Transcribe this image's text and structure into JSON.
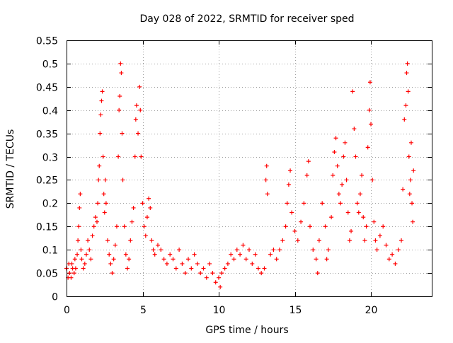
{
  "chart_data": {
    "type": "scatter",
    "title": "Day 028 of 2022, SRMTID for receiver sped",
    "xlabel": "GPS time / hours",
    "ylabel": "SRMTID / TECUs",
    "xlim": [
      0,
      24
    ],
    "ylim": [
      0,
      0.55
    ],
    "xticks": [
      0,
      5,
      10,
      15,
      20
    ],
    "yticks": [
      0,
      0.05,
      0.1,
      0.15,
      0.2,
      0.25,
      0.3,
      0.35,
      0.4,
      0.45,
      0.5,
      0.55
    ],
    "xtick_labels": [
      "0",
      "5",
      "10",
      "15",
      "20"
    ],
    "ytick_labels": [
      "0",
      "0.05",
      "0.1",
      "0.15",
      "0.2",
      "0.25",
      "0.3",
      "0.35",
      "0.4",
      "0.45",
      "0.5",
      "0.55"
    ],
    "grid": true,
    "marker": "+",
    "color": "#ff0000",
    "series": [
      {
        "name": "SRMTID",
        "points": [
          [
            0.0,
            0.06
          ],
          [
            0.1,
            0.04
          ],
          [
            0.15,
            0.07
          ],
          [
            0.2,
            0.05
          ],
          [
            0.3,
            0.04
          ],
          [
            0.35,
            0.07
          ],
          [
            0.4,
            0.06
          ],
          [
            0.5,
            0.05
          ],
          [
            0.55,
            0.08
          ],
          [
            0.6,
            0.06
          ],
          [
            0.7,
            0.09
          ],
          [
            0.75,
            0.12
          ],
          [
            0.8,
            0.15
          ],
          [
            0.85,
            0.19
          ],
          [
            0.9,
            0.22
          ],
          [
            0.95,
            0.1
          ],
          [
            1.0,
            0.08
          ],
          [
            1.1,
            0.06
          ],
          [
            1.2,
            0.07
          ],
          [
            1.3,
            0.09
          ],
          [
            1.4,
            0.12
          ],
          [
            1.5,
            0.1
          ],
          [
            1.6,
            0.08
          ],
          [
            1.7,
            0.13
          ],
          [
            1.8,
            0.15
          ],
          [
            1.9,
            0.17
          ],
          [
            2.0,
            0.16
          ],
          [
            2.05,
            0.2
          ],
          [
            2.1,
            0.25
          ],
          [
            2.15,
            0.28
          ],
          [
            2.2,
            0.35
          ],
          [
            2.25,
            0.39
          ],
          [
            2.3,
            0.42
          ],
          [
            2.35,
            0.44
          ],
          [
            2.4,
            0.3
          ],
          [
            2.45,
            0.22
          ],
          [
            2.5,
            0.18
          ],
          [
            2.55,
            0.25
          ],
          [
            2.6,
            0.2
          ],
          [
            2.7,
            0.12
          ],
          [
            2.8,
            0.09
          ],
          [
            2.9,
            0.07
          ],
          [
            3.0,
            0.05
          ],
          [
            3.1,
            0.08
          ],
          [
            3.2,
            0.11
          ],
          [
            3.3,
            0.15
          ],
          [
            3.4,
            0.3
          ],
          [
            3.45,
            0.4
          ],
          [
            3.5,
            0.43
          ],
          [
            3.55,
            0.5
          ],
          [
            3.6,
            0.48
          ],
          [
            3.65,
            0.35
          ],
          [
            3.7,
            0.25
          ],
          [
            3.8,
            0.15
          ],
          [
            3.9,
            0.09
          ],
          [
            4.0,
            0.06
          ],
          [
            4.1,
            0.08
          ],
          [
            4.2,
            0.12
          ],
          [
            4.3,
            0.16
          ],
          [
            4.4,
            0.19
          ],
          [
            4.5,
            0.3
          ],
          [
            4.55,
            0.38
          ],
          [
            4.6,
            0.41
          ],
          [
            4.7,
            0.35
          ],
          [
            4.8,
            0.45
          ],
          [
            4.85,
            0.4
          ],
          [
            4.9,
            0.3
          ],
          [
            5.0,
            0.2
          ],
          [
            5.1,
            0.15
          ],
          [
            5.2,
            0.13
          ],
          [
            5.3,
            0.17
          ],
          [
            5.4,
            0.21
          ],
          [
            5.5,
            0.19
          ],
          [
            5.6,
            0.12
          ],
          [
            5.7,
            0.1
          ],
          [
            5.8,
            0.09
          ],
          [
            6.0,
            0.11
          ],
          [
            6.2,
            0.1
          ],
          [
            6.4,
            0.08
          ],
          [
            6.6,
            0.07
          ],
          [
            6.8,
            0.09
          ],
          [
            7.0,
            0.08
          ],
          [
            7.2,
            0.06
          ],
          [
            7.4,
            0.1
          ],
          [
            7.6,
            0.07
          ],
          [
            7.8,
            0.05
          ],
          [
            8.0,
            0.08
          ],
          [
            8.2,
            0.06
          ],
          [
            8.4,
            0.09
          ],
          [
            8.6,
            0.07
          ],
          [
            8.8,
            0.05
          ],
          [
            9.0,
            0.06
          ],
          [
            9.2,
            0.04
          ],
          [
            9.4,
            0.07
          ],
          [
            9.6,
            0.05
          ],
          [
            9.8,
            0.03
          ],
          [
            10.0,
            0.04
          ],
          [
            10.1,
            0.02
          ],
          [
            10.2,
            0.05
          ],
          [
            10.4,
            0.06
          ],
          [
            10.6,
            0.07
          ],
          [
            10.8,
            0.09
          ],
          [
            11.0,
            0.08
          ],
          [
            11.2,
            0.1
          ],
          [
            11.4,
            0.09
          ],
          [
            11.6,
            0.11
          ],
          [
            11.8,
            0.08
          ],
          [
            12.0,
            0.1
          ],
          [
            12.2,
            0.07
          ],
          [
            12.4,
            0.09
          ],
          [
            12.6,
            0.06
          ],
          [
            12.8,
            0.05
          ],
          [
            13.0,
            0.06
          ],
          [
            13.1,
            0.25
          ],
          [
            13.15,
            0.28
          ],
          [
            13.2,
            0.22
          ],
          [
            13.4,
            0.09
          ],
          [
            13.6,
            0.1
          ],
          [
            13.8,
            0.08
          ],
          [
            14.0,
            0.1
          ],
          [
            14.2,
            0.12
          ],
          [
            14.4,
            0.15
          ],
          [
            14.5,
            0.2
          ],
          [
            14.6,
            0.24
          ],
          [
            14.7,
            0.27
          ],
          [
            14.8,
            0.18
          ],
          [
            15.0,
            0.14
          ],
          [
            15.2,
            0.12
          ],
          [
            15.4,
            0.16
          ],
          [
            15.6,
            0.2
          ],
          [
            15.8,
            0.26
          ],
          [
            15.9,
            0.29
          ],
          [
            16.0,
            0.15
          ],
          [
            16.2,
            0.1
          ],
          [
            16.4,
            0.08
          ],
          [
            16.5,
            0.05
          ],
          [
            16.6,
            0.12
          ],
          [
            16.8,
            0.2
          ],
          [
            17.0,
            0.15
          ],
          [
            17.1,
            0.08
          ],
          [
            17.2,
            0.1
          ],
          [
            17.4,
            0.17
          ],
          [
            17.5,
            0.26
          ],
          [
            17.6,
            0.31
          ],
          [
            17.7,
            0.34
          ],
          [
            17.8,
            0.28
          ],
          [
            17.9,
            0.22
          ],
          [
            18.0,
            0.2
          ],
          [
            18.1,
            0.24
          ],
          [
            18.2,
            0.3
          ],
          [
            18.3,
            0.33
          ],
          [
            18.4,
            0.25
          ],
          [
            18.5,
            0.18
          ],
          [
            18.6,
            0.12
          ],
          [
            18.7,
            0.14
          ],
          [
            18.8,
            0.44
          ],
          [
            18.9,
            0.36
          ],
          [
            19.0,
            0.3
          ],
          [
            19.1,
            0.2
          ],
          [
            19.2,
            0.18
          ],
          [
            19.3,
            0.22
          ],
          [
            19.4,
            0.26
          ],
          [
            19.5,
            0.17
          ],
          [
            19.6,
            0.12
          ],
          [
            19.7,
            0.15
          ],
          [
            19.8,
            0.32
          ],
          [
            19.9,
            0.4
          ],
          [
            19.95,
            0.46
          ],
          [
            20.0,
            0.37
          ],
          [
            20.1,
            0.25
          ],
          [
            20.2,
            0.16
          ],
          [
            20.3,
            0.12
          ],
          [
            20.4,
            0.1
          ],
          [
            20.6,
            0.13
          ],
          [
            20.8,
            0.15
          ],
          [
            21.0,
            0.11
          ],
          [
            21.2,
            0.08
          ],
          [
            21.4,
            0.09
          ],
          [
            21.6,
            0.07
          ],
          [
            21.8,
            0.1
          ],
          [
            22.0,
            0.12
          ],
          [
            22.1,
            0.23
          ],
          [
            22.2,
            0.38
          ],
          [
            22.3,
            0.41
          ],
          [
            22.35,
            0.48
          ],
          [
            22.4,
            0.5
          ],
          [
            22.45,
            0.44
          ],
          [
            22.5,
            0.3
          ],
          [
            22.55,
            0.22
          ],
          [
            22.6,
            0.25
          ],
          [
            22.65,
            0.33
          ],
          [
            22.7,
            0.2
          ],
          [
            22.75,
            0.16
          ],
          [
            22.8,
            0.27
          ]
        ]
      }
    ]
  }
}
